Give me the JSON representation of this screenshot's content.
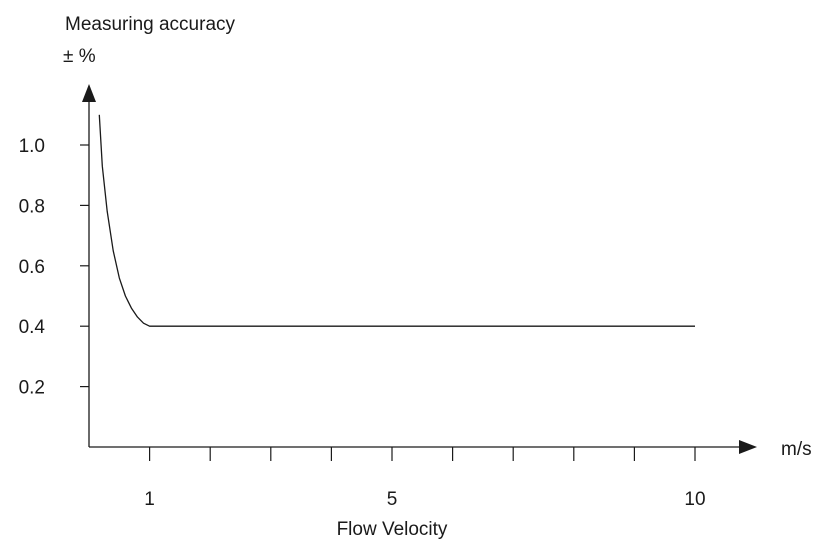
{
  "chart_data": {
    "type": "line",
    "ylabel": "Measuring accuracy",
    "ylabel_unit": "± %",
    "xlabel": "Flow Velocity",
    "x_unit": "m/s",
    "x_tick_labels": [
      {
        "value": 1,
        "label": "1"
      },
      {
        "value": 5,
        "label": "5"
      },
      {
        "value": 10,
        "label": "10"
      }
    ],
    "x_minor_ticks": [
      2,
      3,
      4,
      6,
      7,
      8,
      9
    ],
    "y_tick_labels": [
      {
        "value": 0.2,
        "label": "0.2"
      },
      {
        "value": 0.4,
        "label": "0.4"
      },
      {
        "value": 0.6,
        "label": "0.6"
      },
      {
        "value": 0.8,
        "label": "0.8"
      },
      {
        "value": 1.0,
        "label": "1.0"
      }
    ],
    "xlim": [
      0,
      11
    ],
    "ylim": [
      0,
      1.25
    ],
    "grid": false,
    "legend": "none",
    "series": [
      {
        "x": [
          0.17,
          0.22,
          0.3,
          0.4,
          0.5,
          0.6,
          0.7,
          0.8,
          0.9,
          1.0,
          10.0
        ],
        "y": [
          1.1,
          0.93,
          0.78,
          0.65,
          0.56,
          0.5,
          0.46,
          0.43,
          0.41,
          0.4,
          0.4
        ]
      }
    ]
  }
}
